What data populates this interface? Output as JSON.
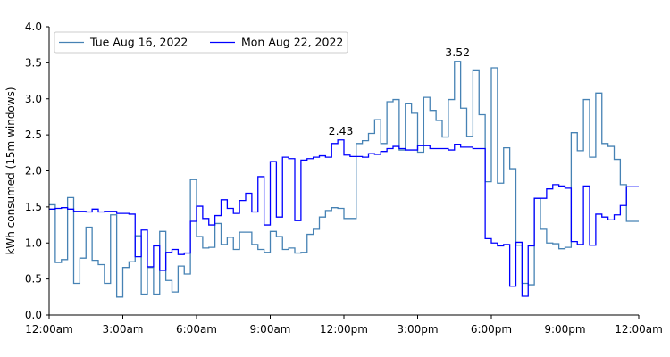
{
  "chart_data": {
    "type": "line",
    "step": true,
    "ylabel": "kWh consumed (15m windows)",
    "xlabel": "",
    "ylim": [
      0,
      4.0
    ],
    "xlim_hours": [
      0,
      24
    ],
    "yticks": [
      "0.0",
      "0.5",
      "1.0",
      "1.5",
      "2.0",
      "2.5",
      "3.0",
      "3.5",
      "4.0"
    ],
    "xticks": [
      "12:00am",
      "3:00am",
      "6:00am",
      "9:00am",
      "12:00pm",
      "3:00pm",
      "6:00pm",
      "9:00pm",
      "12:00am"
    ],
    "legend_position": "top-left",
    "grid": false,
    "series": [
      {
        "name": "Tue Aug 16, 2022",
        "color": "#4682b4",
        "values": [
          1.53,
          0.73,
          0.77,
          1.63,
          0.44,
          0.79,
          1.22,
          0.76,
          0.7,
          0.44,
          1.39,
          0.25,
          0.66,
          0.74,
          1.1,
          0.29,
          0.66,
          0.29,
          1.16,
          0.48,
          0.32,
          0.68,
          0.57,
          1.88,
          1.09,
          0.93,
          0.94,
          1.27,
          0.98,
          1.08,
          0.91,
          1.15,
          1.15,
          0.98,
          0.91,
          0.87,
          1.16,
          1.09,
          0.91,
          0.93,
          0.86,
          0.87,
          1.12,
          1.19,
          1.36,
          1.45,
          1.49,
          1.48,
          1.34,
          1.34,
          2.38,
          2.42,
          2.52,
          2.71,
          2.38,
          2.96,
          2.99,
          2.29,
          2.94,
          2.8,
          2.26,
          3.02,
          2.84,
          2.7,
          2.47,
          2.99,
          3.52,
          2.87,
          2.48,
          3.4,
          2.78,
          1.85,
          3.43,
          1.83,
          2.32,
          2.03,
          0.97,
          0.44,
          0.42,
          1.62,
          1.19,
          1.0,
          0.99,
          0.92,
          0.94,
          2.53,
          2.28,
          2.99,
          2.19,
          3.08,
          2.38,
          2.34,
          2.16,
          1.81,
          1.3,
          1.3
        ]
      },
      {
        "name": "Mon Aug 22, 2022",
        "color": "#0000ff",
        "values": [
          1.47,
          1.48,
          1.49,
          1.47,
          1.44,
          1.44,
          1.43,
          1.47,
          1.43,
          1.44,
          1.44,
          1.41,
          1.41,
          1.4,
          0.81,
          1.18,
          0.67,
          0.96,
          0.62,
          0.87,
          0.91,
          0.84,
          0.86,
          1.3,
          1.51,
          1.34,
          1.25,
          1.38,
          1.6,
          1.48,
          1.41,
          1.59,
          1.69,
          1.43,
          1.92,
          1.25,
          2.13,
          1.36,
          2.19,
          2.17,
          1.31,
          2.15,
          2.17,
          2.19,
          2.21,
          2.19,
          2.38,
          2.43,
          2.22,
          2.2,
          2.2,
          2.19,
          2.24,
          2.23,
          2.27,
          2.31,
          2.34,
          2.31,
          2.29,
          2.29,
          2.35,
          2.35,
          2.31,
          2.31,
          2.31,
          2.29,
          2.37,
          2.33,
          2.33,
          2.31,
          2.31,
          1.06,
          1.0,
          0.96,
          0.98,
          0.4,
          1.01,
          0.26,
          0.96,
          1.62,
          1.62,
          1.75,
          1.81,
          1.79,
          1.76,
          1.02,
          0.98,
          1.79,
          0.97,
          1.4,
          1.36,
          1.32,
          1.39,
          1.52,
          1.78,
          1.78
        ]
      }
    ],
    "annotations": [
      {
        "text": "2.43",
        "series": 1,
        "index": 47,
        "value": 2.43
      },
      {
        "text": "3.52",
        "series": 0,
        "index": 66,
        "value": 3.52
      }
    ]
  }
}
